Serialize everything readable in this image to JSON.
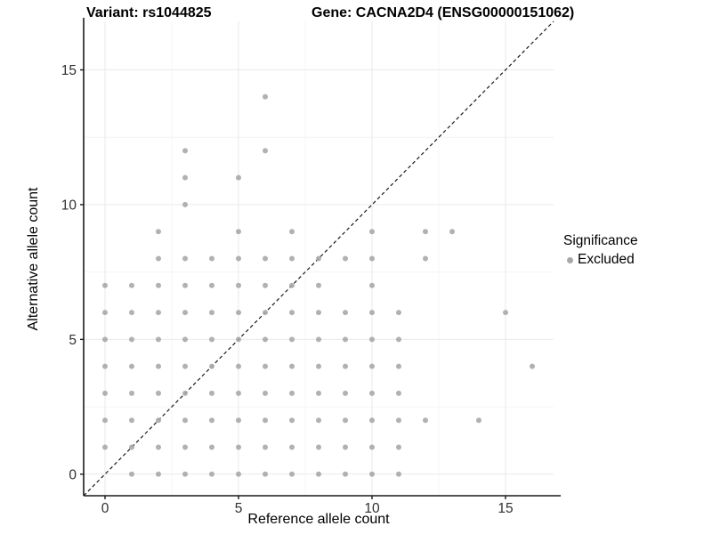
{
  "chart_data": {
    "type": "scatter",
    "title_left": "Variant: rs1044825",
    "title_right": "Gene: CACNA2D4 (ENSG00000151062)",
    "xlabel": "Reference allele count",
    "ylabel": "Alternative allele count",
    "xticks": [
      0,
      5,
      10,
      15
    ],
    "yticks": [
      0,
      5,
      10,
      15
    ],
    "minor_ticks": [
      2.5,
      7.5,
      12.5
    ],
    "xlim": [
      -0.8,
      16.8
    ],
    "ylim": [
      -0.8,
      16.8
    ],
    "grid": true,
    "identity_line": {
      "style": "dashed",
      "from": [
        -0.8,
        -0.8
      ],
      "to": [
        16.8,
        16.8
      ],
      "color": "#1a1a1a"
    },
    "legend": {
      "title": "Significance",
      "position": "right",
      "items": [
        {
          "label": "Excluded",
          "color": "#a8a8a8"
        }
      ]
    },
    "point_color": "#a8a8a8",
    "point_radius": 3,
    "points": [
      [
        1,
        0
      ],
      [
        2,
        0
      ],
      [
        3,
        0
      ],
      [
        4,
        0
      ],
      [
        5,
        0
      ],
      [
        6,
        0
      ],
      [
        7,
        0
      ],
      [
        8,
        0
      ],
      [
        9,
        0
      ],
      [
        10,
        0
      ],
      [
        11,
        0
      ],
      [
        0,
        1
      ],
      [
        1,
        1
      ],
      [
        2,
        1
      ],
      [
        3,
        1
      ],
      [
        4,
        1
      ],
      [
        5,
        1
      ],
      [
        6,
        1
      ],
      [
        7,
        1
      ],
      [
        8,
        1
      ],
      [
        9,
        1
      ],
      [
        10,
        1
      ],
      [
        11,
        1
      ],
      [
        0,
        2
      ],
      [
        1,
        2
      ],
      [
        2,
        2
      ],
      [
        3,
        2
      ],
      [
        4,
        2
      ],
      [
        5,
        2
      ],
      [
        6,
        2
      ],
      [
        7,
        2
      ],
      [
        8,
        2
      ],
      [
        9,
        2
      ],
      [
        10,
        2
      ],
      [
        11,
        2
      ],
      [
        12,
        2
      ],
      [
        14,
        2
      ],
      [
        0,
        3
      ],
      [
        1,
        3
      ],
      [
        2,
        3
      ],
      [
        3,
        3
      ],
      [
        4,
        3
      ],
      [
        5,
        3
      ],
      [
        6,
        3
      ],
      [
        7,
        3
      ],
      [
        8,
        3
      ],
      [
        9,
        3
      ],
      [
        10,
        3
      ],
      [
        11,
        3
      ],
      [
        0,
        4
      ],
      [
        1,
        4
      ],
      [
        2,
        4
      ],
      [
        3,
        4
      ],
      [
        4,
        4
      ],
      [
        5,
        4
      ],
      [
        6,
        4
      ],
      [
        7,
        4
      ],
      [
        8,
        4
      ],
      [
        9,
        4
      ],
      [
        10,
        4
      ],
      [
        11,
        4
      ],
      [
        16,
        4
      ],
      [
        0,
        5
      ],
      [
        1,
        5
      ],
      [
        2,
        5
      ],
      [
        3,
        5
      ],
      [
        4,
        5
      ],
      [
        5,
        5
      ],
      [
        6,
        5
      ],
      [
        7,
        5
      ],
      [
        8,
        5
      ],
      [
        9,
        5
      ],
      [
        10,
        5
      ],
      [
        11,
        5
      ],
      [
        0,
        6
      ],
      [
        1,
        6
      ],
      [
        2,
        6
      ],
      [
        3,
        6
      ],
      [
        4,
        6
      ],
      [
        5,
        6
      ],
      [
        6,
        6
      ],
      [
        7,
        6
      ],
      [
        8,
        6
      ],
      [
        9,
        6
      ],
      [
        10,
        6
      ],
      [
        11,
        6
      ],
      [
        15,
        6
      ],
      [
        0,
        7
      ],
      [
        1,
        7
      ],
      [
        2,
        7
      ],
      [
        3,
        7
      ],
      [
        4,
        7
      ],
      [
        5,
        7
      ],
      [
        6,
        7
      ],
      [
        7,
        7
      ],
      [
        8,
        7
      ],
      [
        10,
        7
      ],
      [
        2,
        8
      ],
      [
        3,
        8
      ],
      [
        4,
        8
      ],
      [
        5,
        8
      ],
      [
        6,
        8
      ],
      [
        7,
        8
      ],
      [
        8,
        8
      ],
      [
        9,
        8
      ],
      [
        10,
        8
      ],
      [
        12,
        8
      ],
      [
        2,
        9
      ],
      [
        5,
        9
      ],
      [
        7,
        9
      ],
      [
        10,
        9
      ],
      [
        12,
        9
      ],
      [
        13,
        9
      ],
      [
        3,
        10
      ],
      [
        3,
        11
      ],
      [
        5,
        11
      ],
      [
        3,
        12
      ],
      [
        6,
        12
      ],
      [
        6,
        14
      ]
    ]
  },
  "colors": {
    "background": "#ffffff",
    "grid_major": "#e9e9e9",
    "grid_minor": "#f4f4f4",
    "axis_line": "#1a1a1a",
    "tick_label": "#303030",
    "point": "#a8a8a8"
  }
}
